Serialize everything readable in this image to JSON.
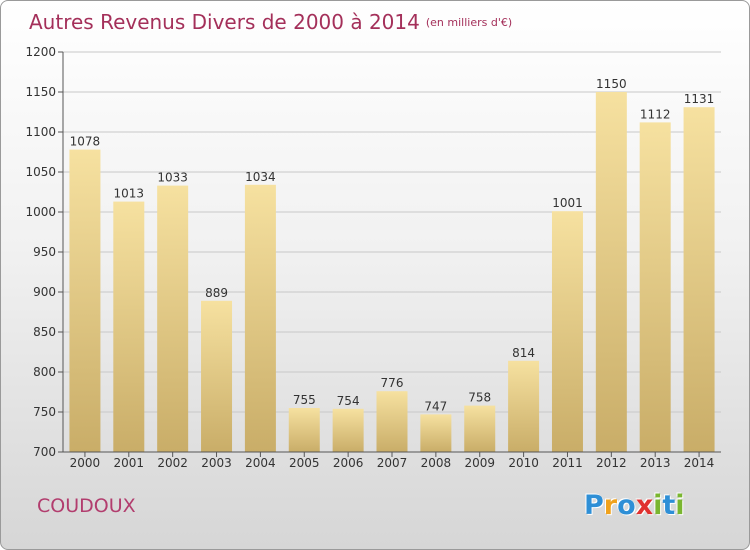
{
  "header": {
    "title": "Autres Revenus Divers de 2000 à 2014",
    "unit": "(en milliers d'€)"
  },
  "footer": {
    "town": "COUDOUX",
    "logo": {
      "text": "Proxiti",
      "letters": [
        {
          "ch": "P",
          "color": "#2e8fd6"
        },
        {
          "ch": "r",
          "color": "#f0a21c"
        },
        {
          "ch": "o",
          "color": "#2e8fd6"
        },
        {
          "ch": "x",
          "color": "#e0312f"
        },
        {
          "ch": "i",
          "color": "#7ab630"
        },
        {
          "ch": "t",
          "color": "#2e8fd6"
        },
        {
          "ch": "i",
          "color": "#7ab630"
        }
      ]
    }
  },
  "chart_data": {
    "type": "bar",
    "categories": [
      "2000",
      "2001",
      "2002",
      "2003",
      "2004",
      "2005",
      "2006",
      "2007",
      "2008",
      "2009",
      "2010",
      "2011",
      "2012",
      "2013",
      "2014"
    ],
    "values": [
      1078,
      1013,
      1033,
      889,
      1034,
      755,
      754,
      776,
      747,
      758,
      814,
      1001,
      1150,
      1112,
      1131
    ],
    "ylim": [
      700,
      1200
    ],
    "yticks": [
      700,
      750,
      800,
      850,
      900,
      950,
      1000,
      1050,
      1100,
      1150,
      1200
    ],
    "grid": true,
    "bar_color_top": "#f6e1a0",
    "bar_color_bottom": "#c9ad68"
  }
}
